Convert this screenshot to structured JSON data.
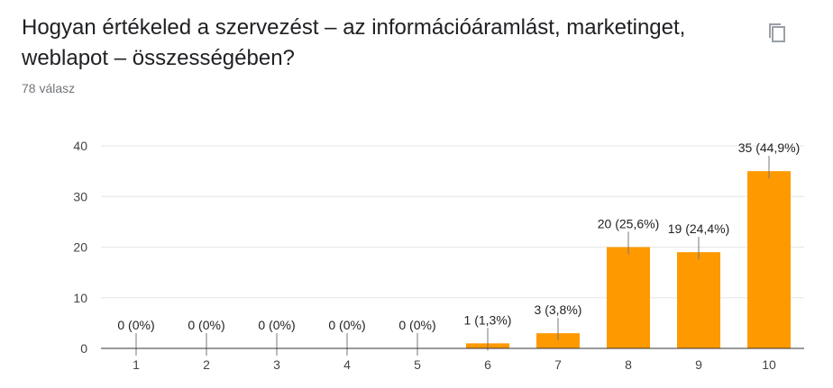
{
  "header": {
    "title": "Hogyan értékeled a szervezést – az információáramlást, marketinget, weblapot – összességében?",
    "response_count": "78 válasz",
    "copy_icon": "copy-icon"
  },
  "colors": {
    "bar": "#ff9900",
    "grid": "#e6e6e6",
    "axis": "#333333",
    "text": "#222222",
    "tick_text": "#444444"
  },
  "chart_data": {
    "type": "bar",
    "categories": [
      "1",
      "2",
      "3",
      "4",
      "5",
      "6",
      "7",
      "8",
      "9",
      "10"
    ],
    "values": [
      0,
      0,
      0,
      0,
      0,
      1,
      3,
      20,
      19,
      35
    ],
    "data_labels": [
      "0 (0%)",
      "0 (0%)",
      "0 (0%)",
      "0 (0%)",
      "0 (0%)",
      "1 (1,3%)",
      "3 (3,8%)",
      "20 (25,6%)",
      "19 (24,4%)",
      "35 (44,9%)"
    ],
    "y_ticks": [
      0,
      10,
      20,
      30,
      40
    ],
    "ylim": [
      0,
      40
    ],
    "grid": true,
    "legend": "none",
    "title": "",
    "xlabel": "",
    "ylabel": ""
  }
}
